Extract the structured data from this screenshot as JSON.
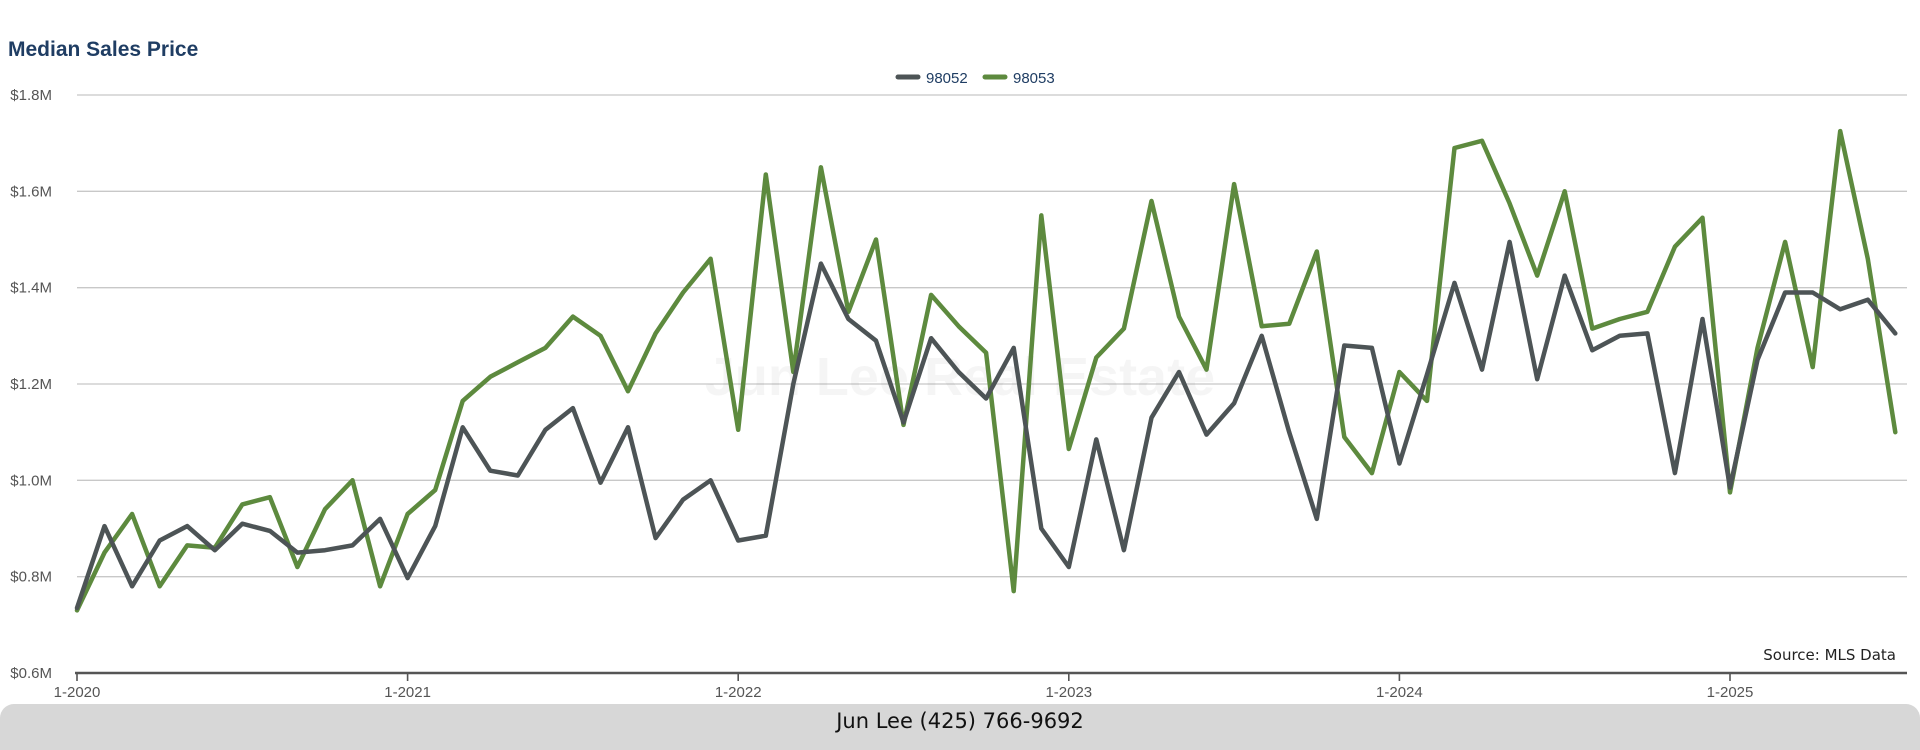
{
  "chart_data": {
    "type": "line",
    "title": "Median Sales Price",
    "watermark": "Jun Lee Real Estate",
    "source": "Source: MLS Data",
    "footer": "Jun Lee (425) 766-9692",
    "ylim": [
      0.6,
      1.8
    ],
    "y_unit": "millions USD",
    "y_ticks": [
      "$0.6M",
      "$0.8M",
      "$1.0M",
      "$1.2M",
      "$1.4M",
      "$1.6M",
      "$1.8M"
    ],
    "x_ticks": [
      "1-2020",
      "1-2021",
      "1-2022",
      "1-2023",
      "1-2024",
      "1-2025"
    ],
    "x_start": "2020-01",
    "x_end": "2025-07",
    "grid": true,
    "legend_position": "top-center",
    "series": [
      {
        "name": "98052",
        "color": "#4d5456",
        "values": [
          0.735,
          0.905,
          0.78,
          0.875,
          0.905,
          0.855,
          0.91,
          0.895,
          0.85,
          0.855,
          0.865,
          0.92,
          0.797,
          0.905,
          1.11,
          1.02,
          1.01,
          1.105,
          1.15,
          0.995,
          1.11,
          0.88,
          0.96,
          1.0,
          0.875,
          0.885,
          1.2,
          1.45,
          1.335,
          1.29,
          1.12,
          1.295,
          1.225,
          1.17,
          1.275,
          0.9,
          0.82,
          1.085,
          0.855,
          1.13,
          1.225,
          1.095,
          1.16,
          1.3,
          1.1,
          0.92,
          1.28,
          1.275,
          1.035,
          1.22,
          1.41,
          1.23,
          1.495,
          1.21,
          1.425,
          1.27,
          1.3,
          1.305,
          1.015,
          1.335,
          0.985,
          1.25,
          1.39,
          1.39,
          1.355,
          1.375,
          1.305
        ]
      },
      {
        "name": "98053",
        "color": "#5d8a3e",
        "values": [
          0.73,
          0.85,
          0.93,
          0.78,
          0.865,
          0.86,
          0.95,
          0.965,
          0.82,
          0.94,
          1.0,
          0.78,
          0.93,
          0.98,
          1.165,
          1.215,
          1.245,
          1.275,
          1.34,
          1.3,
          1.185,
          1.305,
          1.39,
          1.46,
          1.105,
          1.635,
          1.225,
          1.65,
          1.35,
          1.5,
          1.115,
          1.385,
          1.32,
          1.265,
          0.77,
          1.55,
          1.065,
          1.255,
          1.315,
          1.58,
          1.34,
          1.23,
          1.615,
          1.32,
          1.325,
          1.475,
          1.09,
          1.015,
          1.225,
          1.165,
          1.69,
          1.705,
          1.575,
          1.425,
          1.6,
          1.315,
          1.335,
          1.35,
          1.485,
          1.545,
          0.975,
          1.275,
          1.495,
          1.235,
          1.725,
          1.46,
          1.1
        ]
      }
    ]
  }
}
